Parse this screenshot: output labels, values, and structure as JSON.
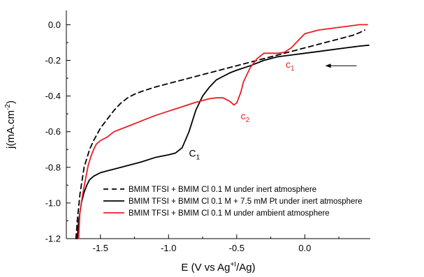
{
  "chart_data": {
    "type": "line",
    "title": "",
    "xlabel": "E (V vs Ag",
    "xlabel_sup": "+I",
    "xlabel_tail": "/Ag)",
    "ylabel": "j(mA.cm",
    "ylabel_sup": "-2",
    "ylabel_tail": ")",
    "xlim": [
      -1.75,
      0.48
    ],
    "ylim": [
      -1.2,
      0.08
    ],
    "x_ticks": [
      -1.5,
      -1.0,
      -0.5,
      0.0
    ],
    "x_tick_labels": [
      "-1.5",
      "-1.0",
      "-0.5",
      "0.0"
    ],
    "y_ticks": [
      0.0,
      -0.2,
      -0.4,
      -0.6,
      -0.8,
      -1.0,
      -1.2
    ],
    "y_tick_labels": [
      "0.0",
      "-0.2",
      "-0.4",
      "-0.6",
      "-0.8",
      "-1.0",
      "-1.2"
    ],
    "grid": false,
    "legend_position": "bottom-right",
    "series": [
      {
        "name": "BMIM TFSI + BMIM Cl 0.1 M under inert atmosphere",
        "color": "#000000",
        "dash": "dashed",
        "x": [
          -1.68,
          -1.67,
          -1.65,
          -1.62,
          -1.58,
          -1.55,
          -1.5,
          -1.45,
          -1.4,
          -1.35,
          -1.3,
          -1.25,
          -1.2,
          -1.1,
          -1.0,
          -0.9,
          -0.8,
          -0.7,
          -0.6,
          -0.5,
          -0.4,
          -0.3,
          -0.2,
          -0.1,
          0.0,
          0.1,
          0.2,
          0.3,
          0.35,
          0.4,
          0.44
        ],
        "y": [
          -1.2,
          -1.1,
          -0.95,
          -0.8,
          -0.7,
          -0.65,
          -0.58,
          -0.53,
          -0.48,
          -0.44,
          -0.41,
          -0.39,
          -0.375,
          -0.35,
          -0.33,
          -0.31,
          -0.29,
          -0.27,
          -0.25,
          -0.23,
          -0.21,
          -0.19,
          -0.17,
          -0.15,
          -0.13,
          -0.11,
          -0.09,
          -0.07,
          -0.06,
          -0.045,
          -0.03
        ]
      },
      {
        "name": "BMIM TFSI + BMIM Cl 0.1 M + 7.5 mM Pt under inert atmosphere",
        "color": "#000000",
        "dash": "solid",
        "x": [
          -1.67,
          -1.66,
          -1.64,
          -1.62,
          -1.6,
          -1.58,
          -1.55,
          -1.5,
          -1.45,
          -1.4,
          -1.3,
          -1.2,
          -1.1,
          -1.0,
          -0.95,
          -0.9,
          -0.85,
          -0.8,
          -0.75,
          -0.7,
          -0.65,
          -0.6,
          -0.55,
          -0.5,
          -0.4,
          -0.3,
          -0.2,
          -0.1,
          0.0,
          0.1,
          0.2,
          0.3,
          0.4,
          0.47
        ],
        "y": [
          -1.2,
          -1.1,
          -1.0,
          -0.94,
          -0.9,
          -0.87,
          -0.85,
          -0.83,
          -0.82,
          -0.81,
          -0.79,
          -0.77,
          -0.745,
          -0.73,
          -0.72,
          -0.69,
          -0.6,
          -0.48,
          -0.4,
          -0.35,
          -0.31,
          -0.29,
          -0.27,
          -0.255,
          -0.23,
          -0.2,
          -0.18,
          -0.17,
          -0.16,
          -0.15,
          -0.14,
          -0.13,
          -0.12,
          -0.115
        ]
      },
      {
        "name": "BMIM TFSI + BMIM Cl 0.1 M under ambient atmosphere",
        "color": "#ee1c24",
        "dash": "solid",
        "x": [
          -1.66,
          -1.65,
          -1.63,
          -1.61,
          -1.59,
          -1.57,
          -1.55,
          -1.53,
          -1.5,
          -1.45,
          -1.4,
          -1.3,
          -1.2,
          -1.1,
          -1.0,
          -0.9,
          -0.8,
          -0.7,
          -0.65,
          -0.6,
          -0.55,
          -0.52,
          -0.5,
          -0.47,
          -0.45,
          -0.4,
          -0.35,
          -0.3,
          -0.25,
          -0.2,
          -0.15,
          -0.1,
          -0.05,
          0.0,
          0.1,
          0.2,
          0.3,
          0.4,
          0.46
        ],
        "y": [
          -1.2,
          -1.05,
          -0.95,
          -0.87,
          -0.79,
          -0.74,
          -0.7,
          -0.67,
          -0.65,
          -0.63,
          -0.6,
          -0.57,
          -0.54,
          -0.51,
          -0.485,
          -0.46,
          -0.435,
          -0.415,
          -0.41,
          -0.41,
          -0.43,
          -0.45,
          -0.44,
          -0.38,
          -0.32,
          -0.24,
          -0.19,
          -0.16,
          -0.16,
          -0.16,
          -0.155,
          -0.13,
          -0.09,
          -0.05,
          -0.03,
          -0.02,
          -0.01,
          0.0,
          0.0
        ]
      }
    ],
    "annotations": [
      {
        "text": "c",
        "sub": "1",
        "x": -0.14,
        "y": -0.24,
        "color": "#ee1c24"
      },
      {
        "text": "c",
        "sub": "2",
        "x": -0.47,
        "y": -0.53,
        "color": "#ee1c24"
      },
      {
        "text": "C",
        "sub": "1",
        "x": -0.85,
        "y": -0.74,
        "color": "#000000"
      }
    ],
    "scan_arrow": {
      "x_from": 0.38,
      "x_to": 0.15,
      "y": -0.23
    }
  }
}
